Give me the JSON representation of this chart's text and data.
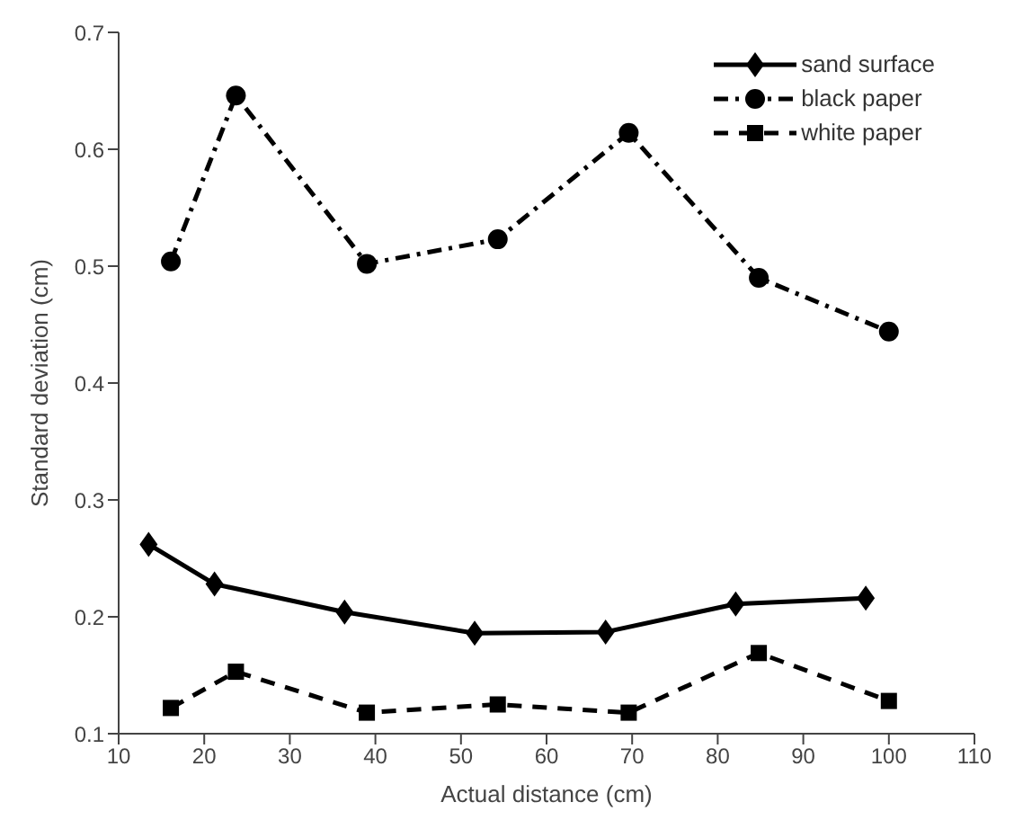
{
  "chart_data": {
    "type": "line",
    "xlabel": "Actual distance (cm)",
    "ylabel": "Standard deviation (cm)",
    "xlim": [
      10,
      110
    ],
    "xticks": [
      10,
      20,
      30,
      40,
      50,
      60,
      70,
      80,
      90,
      100,
      110
    ],
    "ylim": [
      0.1,
      0.7
    ],
    "yticks": [
      0.1,
      0.2,
      0.3,
      0.4,
      0.5,
      0.6,
      0.7
    ],
    "legend": "top right",
    "series": [
      {
        "name": "sand surface",
        "color": "#000000",
        "marker": "diamond",
        "line_style": "solid",
        "x": [
          13.5,
          21.2,
          36.4,
          51.6,
          66.9,
          82.1,
          97.3
        ],
        "values": [
          0.262,
          0.228,
          0.204,
          0.186,
          0.187,
          0.211,
          0.216
        ]
      },
      {
        "name": "black paper",
        "color": "#000000",
        "marker": "circle",
        "line_style": "dashdot",
        "x": [
          16.1,
          23.7,
          39.0,
          54.3,
          69.6,
          84.8,
          100
        ],
        "values": [
          0.504,
          0.646,
          0.502,
          0.523,
          0.614,
          0.49,
          0.444
        ]
      },
      {
        "name": "white paper",
        "color": "#000000",
        "marker": "square",
        "line_style": "dashed",
        "x": [
          16.1,
          23.7,
          39.0,
          54.3,
          69.6,
          84.8,
          100
        ],
        "values": [
          0.122,
          0.153,
          0.118,
          0.125,
          0.118,
          0.169,
          0.128
        ]
      }
    ]
  }
}
